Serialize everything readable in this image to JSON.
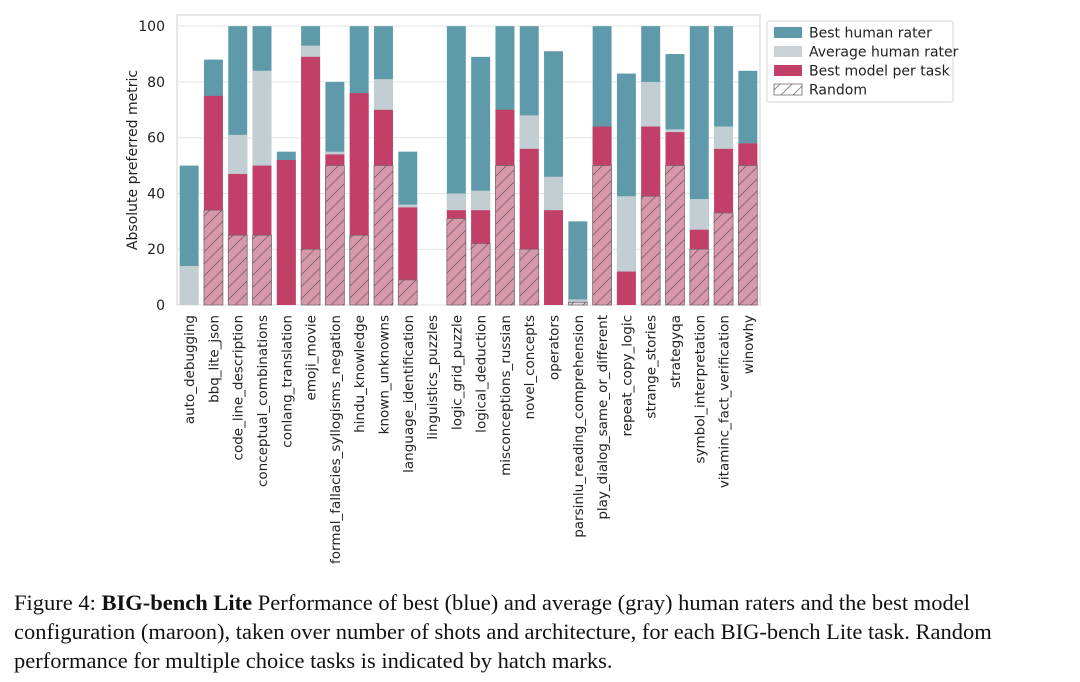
{
  "chart_data": {
    "type": "bar",
    "title": "",
    "xlabel": "",
    "ylabel": "Absolute preferred metric",
    "ylim": [
      0,
      104
    ],
    "yticks": [
      0,
      20,
      40,
      60,
      80,
      100
    ],
    "legend_position": "top-right, outside plot",
    "categories": [
      "auto_debugging",
      "bbq_lite_json",
      "code_line_description",
      "conceptual_combinations",
      "conlang_translation",
      "emoji_movie",
      "formal_fallacies_syllogisms_negation",
      "hindu_knowledge",
      "known_unknowns",
      "language_identification",
      "linguistics_puzzles",
      "logic_grid_puzzle",
      "logical_deduction",
      "misconceptions_russian",
      "novel_concepts",
      "operators",
      "parsinlu_reading_comprehension",
      "play_dialog_same_or_different",
      "repeat_copy_logic",
      "strange_stories",
      "strategyqa",
      "symbol_interpretation",
      "vitaminc_fact_verification",
      "winowhy"
    ],
    "series": [
      {
        "name": "Best human rater",
        "color": "#5e9aaa",
        "values": [
          50,
          88,
          100,
          100,
          55,
          100,
          80,
          100,
          100,
          55,
          0,
          100,
          89,
          100,
          100,
          91,
          30,
          100,
          83,
          100,
          90,
          100,
          100,
          84
        ]
      },
      {
        "name": "Average human rater",
        "color": "#cbd3d6",
        "values": [
          14,
          60,
          61,
          84,
          52,
          93,
          55,
          62,
          81,
          36,
          0,
          40,
          41,
          65,
          68,
          46,
          2,
          52,
          39,
          80,
          63,
          38,
          64,
          58
        ]
      },
      {
        "name": "Best model per task",
        "color": "#c23f67",
        "values": [
          0,
          75,
          47,
          50,
          52,
          89,
          54,
          76,
          70,
          35,
          0,
          34,
          34,
          70,
          56,
          34,
          0,
          64,
          12,
          64,
          62,
          27,
          56,
          58
        ]
      },
      {
        "name": "Random",
        "color": "#8a6a74",
        "values": [
          0,
          34,
          25,
          25,
          0,
          20,
          50,
          25,
          50,
          9,
          0,
          31,
          22,
          50,
          20,
          0,
          1,
          50,
          0,
          39,
          50,
          20,
          33,
          50
        ]
      }
    ]
  },
  "caption": {
    "prefix": "Figure 4: ",
    "bold": "BIG-bench Lite",
    "text": " Performance of best (blue) and average (gray) human raters and the best model configuration (maroon), taken over number of shots and architecture, for each BIG-bench Lite task. Random performance for multiple choice tasks is indicated by hatch marks."
  }
}
